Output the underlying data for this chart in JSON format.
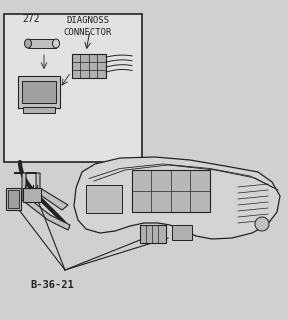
{
  "bg_color": "#d8d8d8",
  "line_color": "#222222",
  "title_label": "DIAGNOSS\nCONNECTOR",
  "part_number": "272",
  "diagram_label": "B-36-21",
  "fig_bg": "#d0d0d0"
}
